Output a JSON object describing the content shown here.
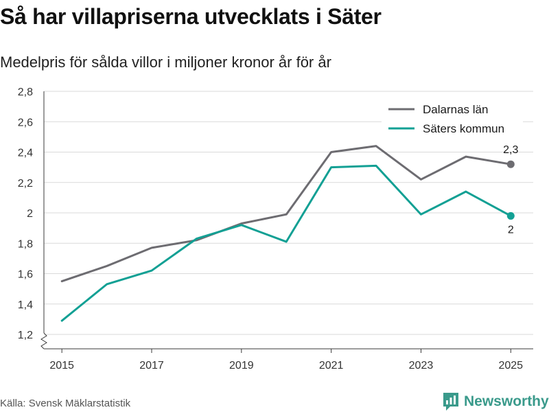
{
  "header": {
    "title": "Så har villapriserna utvecklats i Säter",
    "subtitle": "Medelpris för sålda villor i miljoner kronor år för år"
  },
  "footer": {
    "source": "Källa: Svensk Mäklarstatistik",
    "brand": "Newsworthy"
  },
  "chart_data": {
    "type": "line",
    "title": "Så har villapriserna utvecklats i Säter",
    "subtitle": "Medelpris för sålda villor i miljoner kronor år för år",
    "xlabel": "",
    "ylabel": "",
    "x": [
      2015,
      2016,
      2017,
      2018,
      2019,
      2020,
      2021,
      2022,
      2023,
      2024,
      2025
    ],
    "xlim": [
      2014.6,
      2025.5
    ],
    "ylim": [
      1.2,
      2.8
    ],
    "x_ticks": [
      2015,
      2017,
      2019,
      2021,
      2023,
      2025
    ],
    "x_tick_labels": [
      "2015",
      "2017",
      "2019",
      "2021",
      "2023",
      "2025"
    ],
    "y_ticks": [
      1.2,
      1.4,
      1.6,
      1.8,
      2.0,
      2.2,
      2.4,
      2.6,
      2.8
    ],
    "y_tick_labels": [
      "1,2",
      "1,4",
      "1,6",
      "1,8",
      "2",
      "2,2",
      "2,4",
      "2,6",
      "2,8"
    ],
    "grid": true,
    "legend_position": "top-right",
    "series": [
      {
        "name": "Dalarnas län",
        "color": "#6d6c71",
        "values": [
          1.55,
          1.65,
          1.77,
          1.82,
          1.93,
          1.99,
          2.4,
          2.44,
          2.22,
          2.37,
          2.32
        ],
        "end_label": "2,3",
        "end_label_position": "above"
      },
      {
        "name": "Säters kommun",
        "color": "#12a094",
        "values": [
          1.29,
          1.53,
          1.62,
          1.83,
          1.92,
          1.81,
          2.3,
          2.31,
          1.99,
          2.14,
          1.98
        ],
        "end_label": "2",
        "end_label_position": "below"
      }
    ]
  }
}
